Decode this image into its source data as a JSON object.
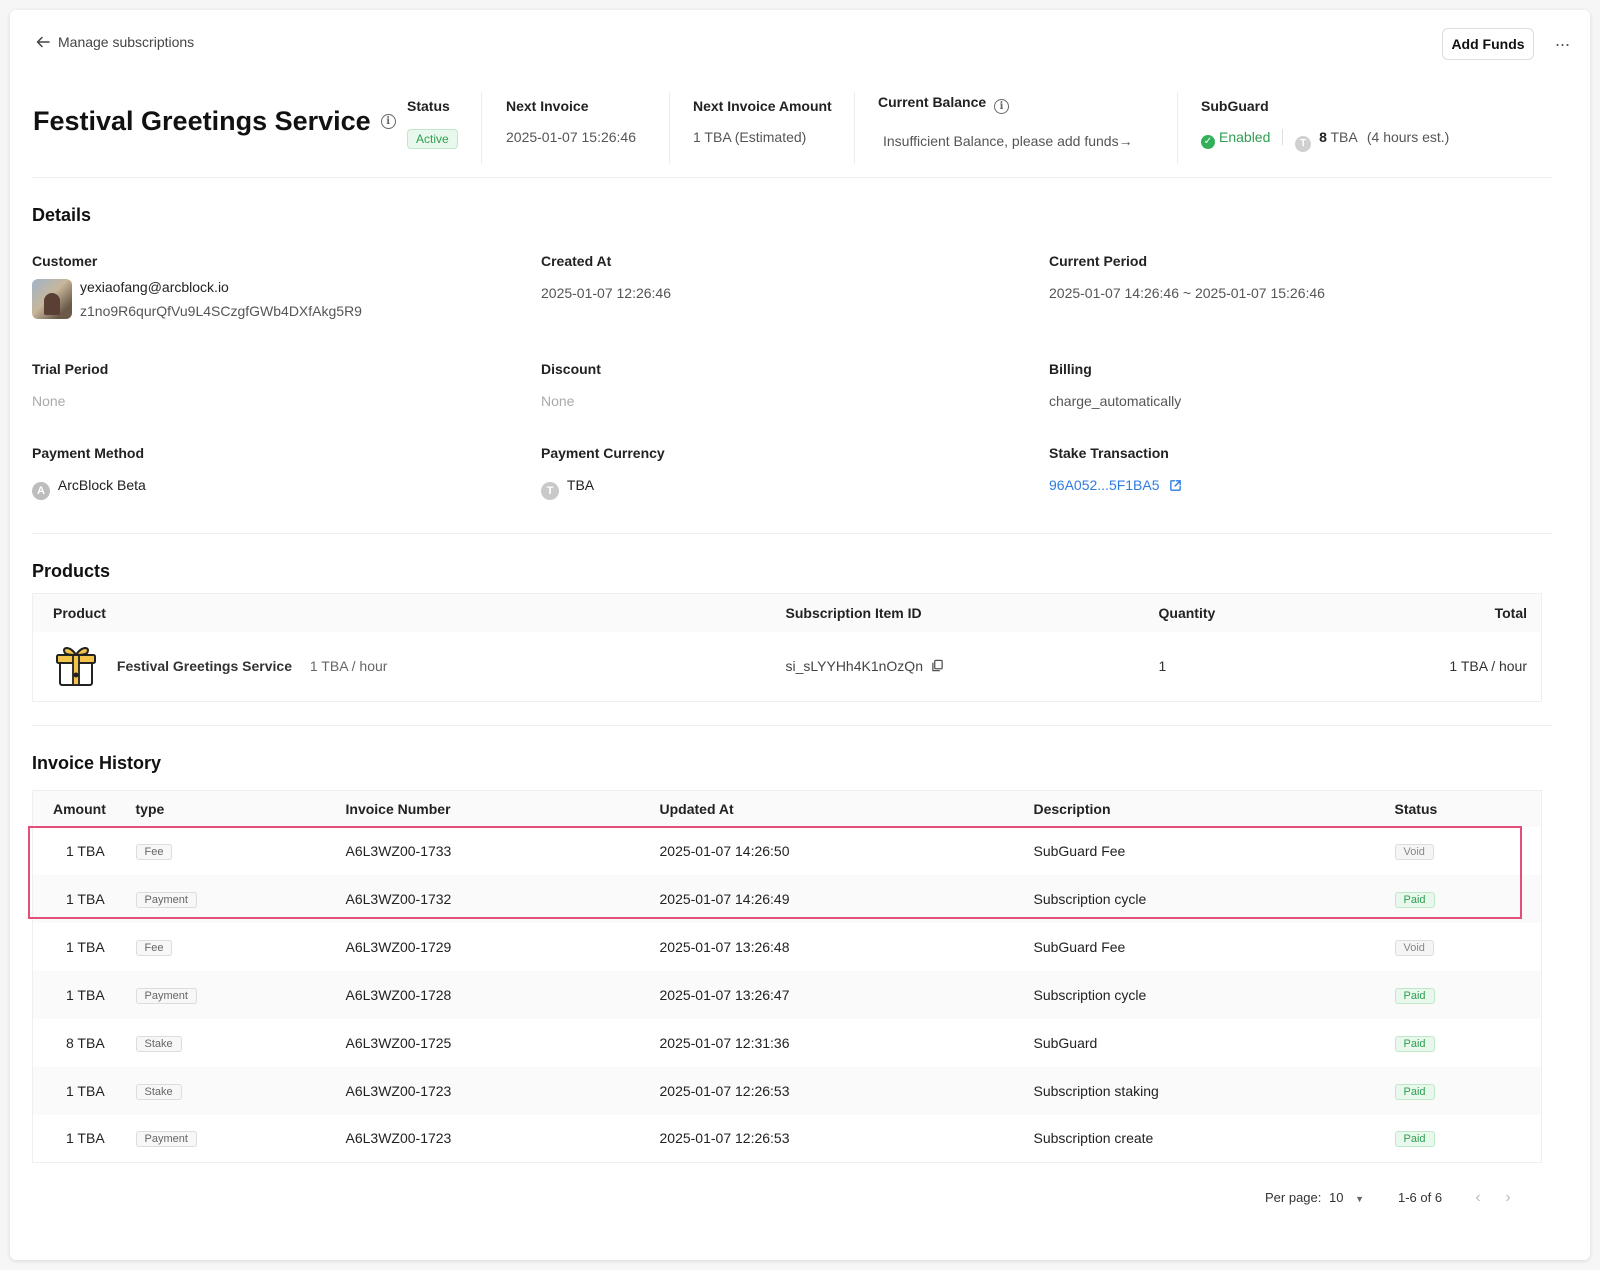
{
  "topbar": {
    "back_label": "Manage subscriptions",
    "add_funds_label": "Add Funds",
    "more_label": "···"
  },
  "header": {
    "title": "Festival Greetings Service",
    "status_label": "Status",
    "status_value": "Active",
    "next_invoice_label": "Next Invoice",
    "next_invoice_value": "2025-01-07 15:26:46",
    "next_amount_label": "Next Invoice Amount",
    "next_amount_value": "1 TBA (Estimated)",
    "balance_label": "Current Balance",
    "balance_value": "Insufficient Balance, please add funds→",
    "subguard_label": "SubGuard",
    "subguard_status": "Enabled",
    "subguard_amount": "8",
    "subguard_unit": "TBA",
    "subguard_est": "(4 hours est.)",
    "coin_letter": "T"
  },
  "details": {
    "heading": "Details",
    "customer_label": "Customer",
    "customer_email": "yexiaofang@arcblock.io",
    "customer_id": "z1no9R6qurQfVu9L4SCzgfGWb4DXfAkg5R9",
    "created_label": "Created At",
    "created_value": "2025-01-07 12:26:46",
    "period_label": "Current Period",
    "period_value": "2025-01-07 14:26:46 ~ 2025-01-07 15:26:46",
    "trial_label": "Trial Period",
    "trial_value": "None",
    "discount_label": "Discount",
    "discount_value": "None",
    "billing_label": "Billing",
    "billing_value": "charge_automatically",
    "pm_label": "Payment Method",
    "pm_letter": "A",
    "pm_value": "ArcBlock Beta",
    "currency_label": "Payment Currency",
    "currency_letter": "T",
    "currency_value": "TBA",
    "stake_label": "Stake Transaction",
    "stake_value": "96A052...5F1BA5"
  },
  "products": {
    "heading": "Products",
    "columns": [
      "Product",
      "Subscription Item ID",
      "Quantity",
      "Total"
    ],
    "row": {
      "name": "Festival Greetings Service",
      "price": "1 TBA / hour",
      "item_id": "si_sLYYHh4K1nOzQn",
      "quantity": "1",
      "total": "1 TBA / hour"
    }
  },
  "invoices": {
    "heading": "Invoice History",
    "columns": [
      "Amount",
      "type",
      "Invoice Number",
      "Updated At",
      "Description",
      "Status"
    ],
    "rows": [
      {
        "amount": "1 TBA",
        "type": "Fee",
        "number": "A6L3WZ00-1733",
        "updated": "2025-01-07 14:26:50",
        "desc": "SubGuard Fee",
        "status": "Void"
      },
      {
        "amount": "1 TBA",
        "type": "Payment",
        "number": "A6L3WZ00-1732",
        "updated": "2025-01-07 14:26:49",
        "desc": "Subscription cycle",
        "status": "Paid"
      },
      {
        "amount": "1 TBA",
        "type": "Fee",
        "number": "A6L3WZ00-1729",
        "updated": "2025-01-07 13:26:48",
        "desc": "SubGuard Fee",
        "status": "Void"
      },
      {
        "amount": "1 TBA",
        "type": "Payment",
        "number": "A6L3WZ00-1728",
        "updated": "2025-01-07 13:26:47",
        "desc": "Subscription cycle",
        "status": "Paid"
      },
      {
        "amount": "8 TBA",
        "type": "Stake",
        "number": "A6L3WZ00-1725",
        "updated": "2025-01-07 12:31:36",
        "desc": "SubGuard",
        "status": "Paid"
      },
      {
        "amount": "1 TBA",
        "type": "Stake",
        "number": "A6L3WZ00-1723",
        "updated": "2025-01-07 12:26:53",
        "desc": "Subscription staking",
        "status": "Paid"
      },
      {
        "amount": "1 TBA",
        "type": "Payment",
        "number": "A6L3WZ00-1723",
        "updated": "2025-01-07 12:26:53",
        "desc": "Subscription create",
        "status": "Paid"
      }
    ]
  },
  "pagination": {
    "per_page_label": "Per page:",
    "per_page_value": "10",
    "range": "1-6 of 6",
    "prev": "‹",
    "next": "›"
  },
  "colors": {
    "accent_link": "#2f7de1",
    "danger": "#d92c4c",
    "success": "#2e9e4f",
    "highlight": "#e2507a"
  }
}
